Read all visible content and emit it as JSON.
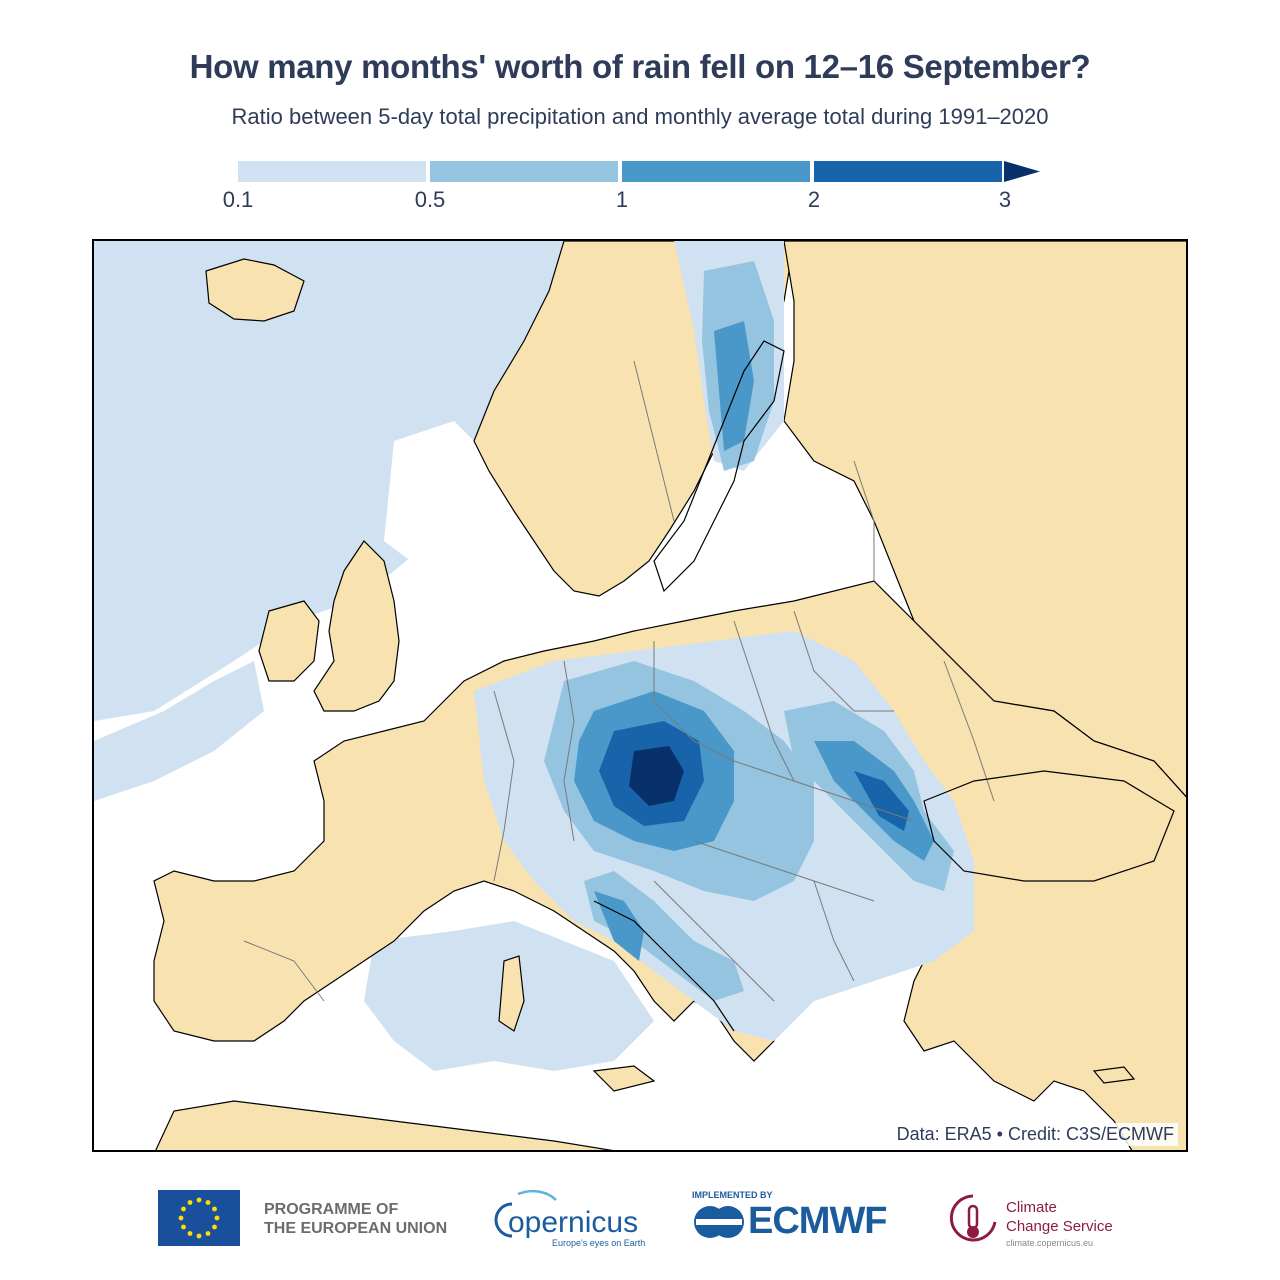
{
  "title": "How many months' worth of rain fell on 12–16 September?",
  "subtitle": "Ratio between 5-day total precipitation and monthly average total during 1991–2020",
  "legend": {
    "ticks": [
      "0.1",
      "0.5",
      "1",
      "2",
      "3"
    ],
    "colors": [
      "#d0e1f2",
      "#94c4df",
      "#4a98c9",
      "#1764ab",
      "#08306b"
    ]
  },
  "map": {
    "land_color": "#f8e2b0",
    "sea_color": "#ffffff",
    "border_color": "#7a7a7a",
    "coast_color": "#000000",
    "credit": "Data: ERA5 • Credit: C3S/ECMWF"
  },
  "footer": {
    "eu_line1": "PROGRAMME OF",
    "eu_line2": "THE EUROPEAN UNION",
    "copernicus_word": "opernicus",
    "copernicus_tag": "Europe's eyes on Earth",
    "ecmwf_impl": "IMPLEMENTED BY",
    "ecmwf_word": "ECMWF",
    "c3s_line1": "Climate",
    "c3s_line2": "Change Service",
    "c3s_url": "climate.copernicus.eu"
  }
}
